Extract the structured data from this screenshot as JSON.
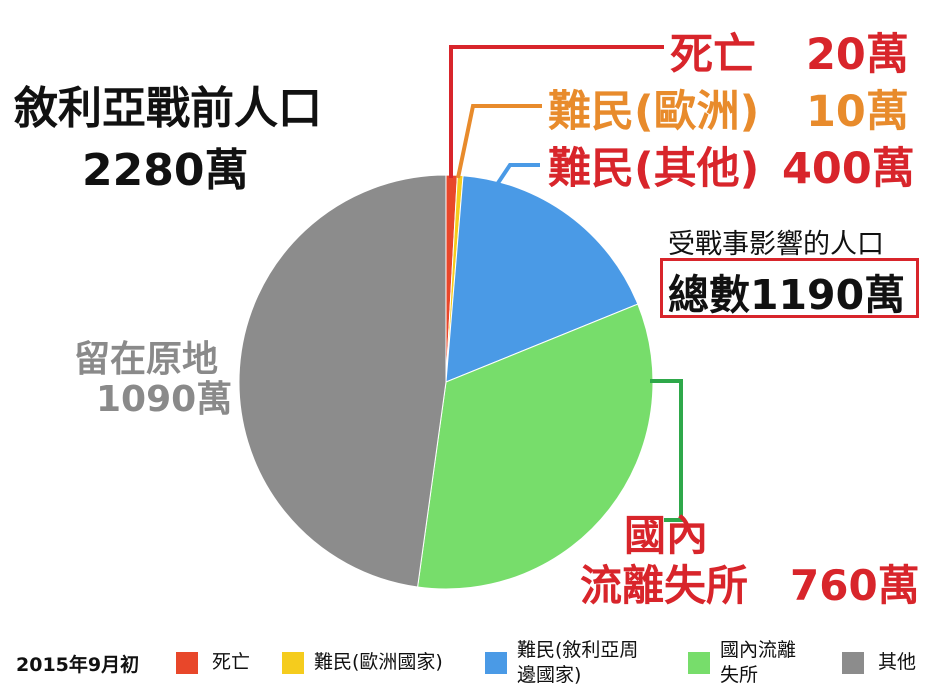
{
  "title": {
    "line1": "敘利亞戰前人口",
    "line2": "2280萬"
  },
  "callouts": {
    "deaths": {
      "label": "死亡",
      "value": "20萬",
      "color": "#d8252b"
    },
    "refugees_europe": {
      "label": "難民(歐洲)",
      "value": "10萬",
      "color": "#e88b2c"
    },
    "refugees_other": {
      "label": "難民(其他)",
      "value": "400萬",
      "color": "#d8252b"
    },
    "stayed": {
      "line1": "留在原地",
      "line2": "1090萬",
      "color": "#8a8a8a"
    },
    "idp": {
      "line1": "國內",
      "line2": "流離失所",
      "value": "760萬",
      "color": "#d8252b"
    }
  },
  "affected": {
    "caption": "受戰事影響的人口",
    "total": "總數1190萬"
  },
  "legend": {
    "date": "2015年9月初",
    "items": [
      {
        "label": "死亡",
        "color": "#e8472a"
      },
      {
        "label": "難民(歐洲國家)",
        "color": "#f5cc1d"
      },
      {
        "label": "難民(敘利亞周邊國家)",
        "color": "#4a9ae6"
      },
      {
        "label": "國內流離失所",
        "color": "#77dd6b"
      },
      {
        "label": "其他",
        "color": "#8c8c8c"
      }
    ]
  },
  "chart_data": {
    "type": "pie",
    "unit": "萬",
    "categories": [
      "死亡",
      "難民(歐洲國家)",
      "難民(敘利亞周邊國家)",
      "國內流離失所",
      "其他"
    ],
    "values": [
      20,
      10,
      400,
      760,
      1090
    ],
    "colors": [
      "#e8472a",
      "#f5cc1d",
      "#4a9ae6",
      "#77dd6b",
      "#8c8c8c"
    ],
    "total": 2280,
    "start_angle_deg": 0,
    "direction": "clockwise",
    "legend_position": "bottom"
  }
}
